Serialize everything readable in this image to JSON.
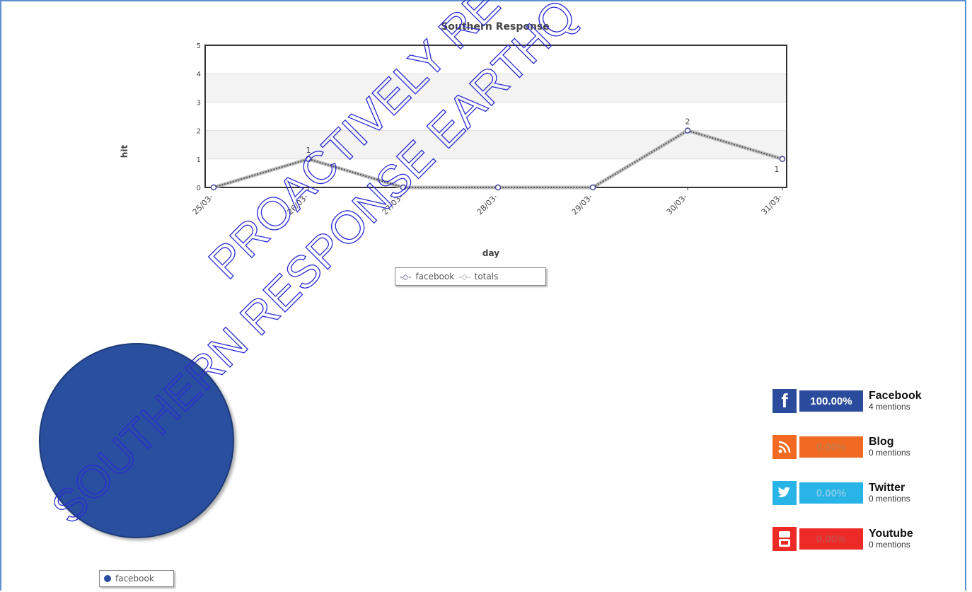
{
  "chart_data": [
    {
      "type": "line",
      "title": "Southern Response",
      "xlabel": "day",
      "ylabel": "hit",
      "categories": [
        "25/03-",
        "26/03-",
        "27/03-",
        "28/03-",
        "29/03-",
        "30/03-",
        "31/03-"
      ],
      "ylim": [
        0,
        5
      ],
      "yticks": [
        "0",
        "1",
        "2",
        "3",
        "4",
        "5"
      ],
      "grid": true,
      "legend": "bottom-center",
      "series": [
        {
          "name": "facebook",
          "values": [
            0,
            1,
            0,
            0,
            0,
            2,
            1
          ],
          "color": "#4a4a9a"
        },
        {
          "name": "totals",
          "values": [
            0,
            1,
            0,
            0,
            0,
            2,
            1
          ],
          "color": "#999999"
        }
      ],
      "data_labels": [
        {
          "index": 1,
          "text": "1"
        },
        {
          "index": 5,
          "text": "2"
        },
        {
          "index": 6,
          "text": "1"
        }
      ]
    },
    {
      "type": "pie",
      "legend": "bottom",
      "slices": [
        {
          "name": "facebook",
          "value": 100,
          "color": "#2b4f9e"
        }
      ]
    }
  ],
  "legend_items": {
    "facebook": "facebook",
    "totals": "totals"
  },
  "social": [
    {
      "name": "Facebook",
      "percent": "100.00%",
      "mentions": "4 mentions",
      "color": "#2b4c9c",
      "icon": "facebook-icon",
      "glyph": "f",
      "text_color": "#ffffff"
    },
    {
      "name": "Blog",
      "percent": "0.00%",
      "mentions": "0 mentions",
      "color": "#f26a21",
      "icon": "rss-icon",
      "glyph": "b",
      "text_color": "#c87a4a"
    },
    {
      "name": "Twitter",
      "percent": "0.00%",
      "mentions": "0 mentions",
      "color": "#28b4e6",
      "icon": "twitter-bird-icon",
      "glyph": "t",
      "text_color": "#7fcbe8"
    },
    {
      "name": "Youtube",
      "percent": "0.00%",
      "mentions": "0 mentions",
      "color": "#ee2a27",
      "icon": "youtube-icon",
      "glyph": "Tube",
      "text_color": "#c84a48"
    }
  ],
  "watermark": [
    "PROACTIVELY RE",
    "SOUTHERN RESPONSE EARTHQ"
  ]
}
